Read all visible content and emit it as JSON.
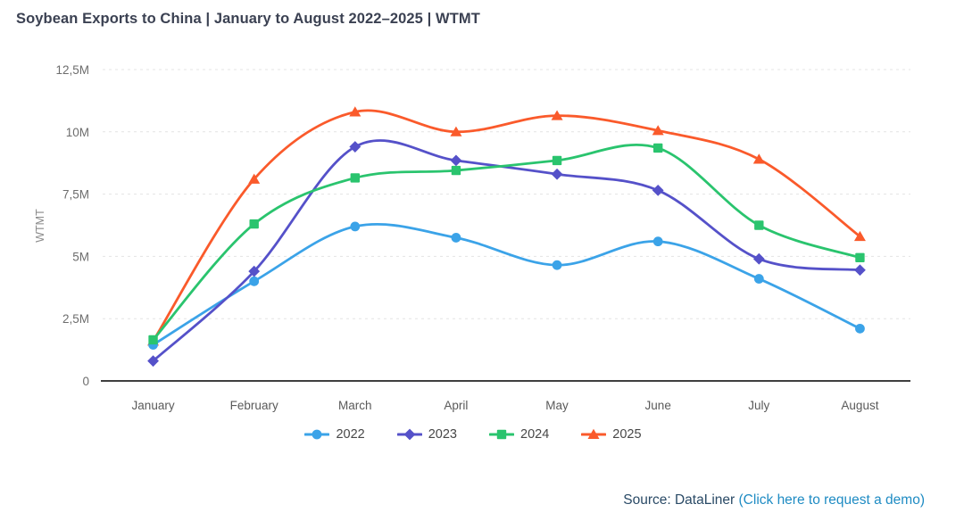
{
  "page": {
    "title": "Soybean Exports to China | January to August 2022–2025 | WTMT"
  },
  "source": {
    "prefix": "Source: DataLiner ",
    "link_text": "(Click here to request a demo)"
  },
  "chart_data": {
    "type": "line",
    "title": "Soybean Exports to China | January to August 2022–2025 | WTMT",
    "xlabel": "",
    "ylabel": "WTMT",
    "unit": "M (millions WTMT)",
    "ylim": [
      0,
      12.5
    ],
    "grid": "horizontal dashed",
    "legend_position": "bottom",
    "line_style": "smooth",
    "categories": [
      "January",
      "February",
      "March",
      "April",
      "May",
      "June",
      "July",
      "August"
    ],
    "y_ticks": [
      {
        "value": 0,
        "label": "0"
      },
      {
        "value": 2.5,
        "label": "2,5M"
      },
      {
        "value": 5,
        "label": "5M"
      },
      {
        "value": 7.5,
        "label": "7,5M"
      },
      {
        "value": 10,
        "label": "10M"
      },
      {
        "value": 12.5,
        "label": "12,5M"
      }
    ],
    "series": [
      {
        "name": "2022",
        "color": "#3BA3E8",
        "marker": "circle",
        "values": [
          1.45,
          4.0,
          6.2,
          5.75,
          4.65,
          5.6,
          4.1,
          2.1
        ]
      },
      {
        "name": "2023",
        "color": "#5551C9",
        "marker": "diamond",
        "values": [
          0.8,
          4.4,
          9.4,
          8.85,
          8.3,
          7.65,
          4.9,
          4.45
        ]
      },
      {
        "name": "2024",
        "color": "#2AC46E",
        "marker": "square",
        "values": [
          1.65,
          6.3,
          8.15,
          8.45,
          8.85,
          9.35,
          6.25,
          4.95
        ]
      },
      {
        "name": "2025",
        "color": "#FA5A2B",
        "marker": "triangle",
        "values": [
          1.6,
          8.1,
          10.8,
          10.0,
          10.65,
          10.05,
          8.9,
          5.8
        ]
      }
    ]
  }
}
